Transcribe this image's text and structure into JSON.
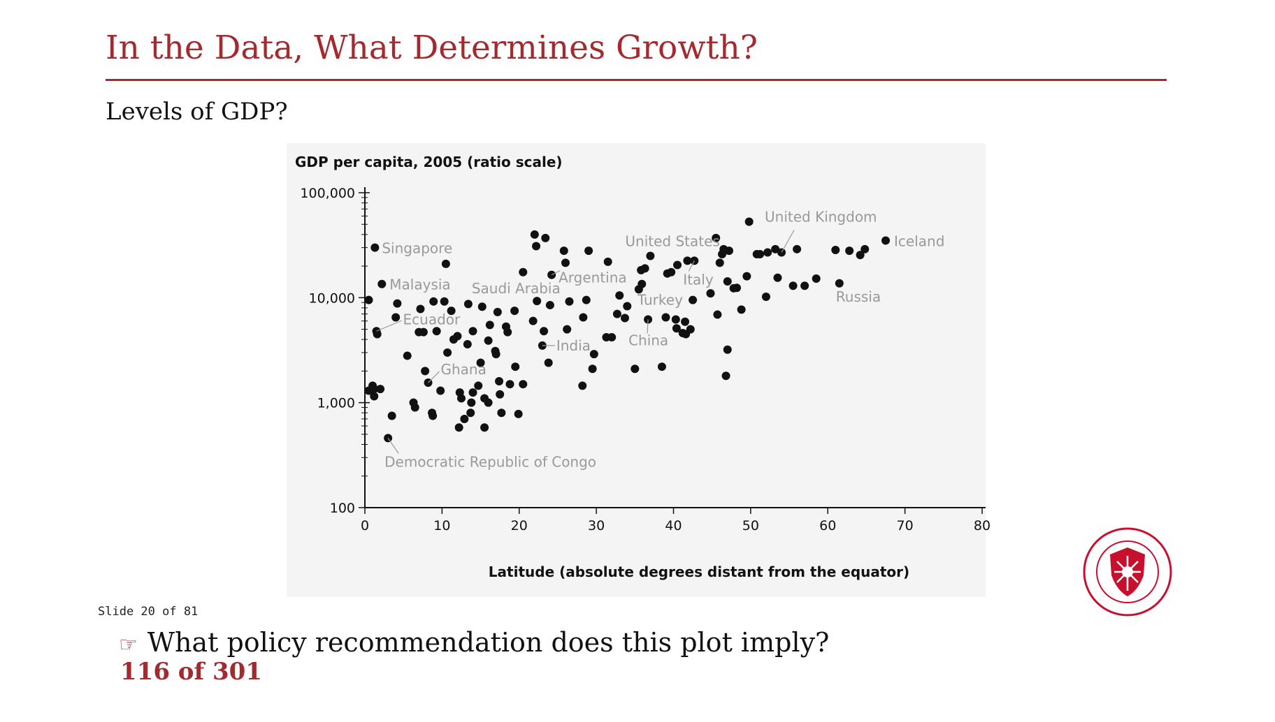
{
  "slide": {
    "title": "In the Data, What Determines Growth?",
    "subtitle": "Levels of GDP?",
    "counter": "Slide 20 of 81",
    "question_icon": "pointing-hand-icon",
    "question": "What policy recommendation does this plot imply?",
    "page_count": "116 of 301",
    "accent_color": "#a32a2f",
    "seal_label": "Carnegie Mellon University seal"
  },
  "chart_data": {
    "type": "scatter",
    "title": "GDP per capita, 2005 (ratio scale)",
    "xlabel": "Latitude (absolute degrees distant from the equator)",
    "ylabel": "",
    "xlim": [
      0,
      80
    ],
    "ylim": [
      100,
      100000
    ],
    "y_scale": "log",
    "x_ticks": [
      0,
      10,
      20,
      30,
      40,
      50,
      60,
      70,
      80
    ],
    "x_tick_labels": [
      "0",
      "10",
      "20",
      "30",
      "40",
      "50",
      "60",
      "70",
      "80"
    ],
    "y_ticks": [
      100,
      1000,
      10000,
      100000
    ],
    "y_tick_labels": [
      "100",
      "1,000",
      "10,000",
      "100,000"
    ],
    "grid": false,
    "marker_color": "#111111",
    "label_color": "#999999",
    "points": [
      [
        0.5,
        9500
      ],
      [
        0.5,
        1300
      ],
      [
        1.0,
        1450
      ],
      [
        1.2,
        1350
      ],
      [
        1.2,
        1150
      ],
      [
        1.3,
        30000
      ],
      [
        1.5,
        4800
      ],
      [
        1.6,
        4500
      ],
      [
        2.0,
        1350
      ],
      [
        2.2,
        13500
      ],
      [
        3.0,
        460
      ],
      [
        3.5,
        750
      ],
      [
        4.0,
        6500
      ],
      [
        4.2,
        8800
      ],
      [
        5.5,
        2800
      ],
      [
        6.3,
        1000
      ],
      [
        6.5,
        900
      ],
      [
        7.0,
        4700
      ],
      [
        7.2,
        7800
      ],
      [
        7.6,
        4700
      ],
      [
        7.8,
        2000
      ],
      [
        8.2,
        1550
      ],
      [
        8.7,
        800
      ],
      [
        8.8,
        750
      ],
      [
        8.9,
        9200
      ],
      [
        9.3,
        4800
      ],
      [
        9.8,
        1300
      ],
      [
        10.3,
        9200
      ],
      [
        10.5,
        21000
      ],
      [
        10.7,
        3000
      ],
      [
        11.2,
        7500
      ],
      [
        11.5,
        4000
      ],
      [
        12.0,
        4300
      ],
      [
        12.2,
        580
      ],
      [
        12.3,
        1250
      ],
      [
        12.5,
        1100
      ],
      [
        12.9,
        700
      ],
      [
        13.3,
        3600
      ],
      [
        13.4,
        8700
      ],
      [
        13.7,
        800
      ],
      [
        13.8,
        1000
      ],
      [
        14.0,
        4800
      ],
      [
        14.0,
        1250
      ],
      [
        14.7,
        1450
      ],
      [
        15.0,
        2400
      ],
      [
        15.2,
        8200
      ],
      [
        15.5,
        580
      ],
      [
        15.5,
        1100
      ],
      [
        16.0,
        1000
      ],
      [
        16.0,
        3900
      ],
      [
        16.2,
        5500
      ],
      [
        16.9,
        3100
      ],
      [
        17.0,
        2900
      ],
      [
        17.2,
        7300
      ],
      [
        17.4,
        1600
      ],
      [
        17.5,
        1200
      ],
      [
        17.7,
        800
      ],
      [
        18.3,
        5300
      ],
      [
        18.5,
        4700
      ],
      [
        18.8,
        1500
      ],
      [
        19.4,
        7500
      ],
      [
        19.5,
        2200
      ],
      [
        19.9,
        780
      ],
      [
        20.5,
        1500
      ],
      [
        20.5,
        17500
      ],
      [
        21.8,
        6000
      ],
      [
        22.0,
        40000
      ],
      [
        22.2,
        31000
      ],
      [
        22.3,
        9300
      ],
      [
        23.0,
        3500
      ],
      [
        23.2,
        4800
      ],
      [
        23.4,
        37000
      ],
      [
        23.8,
        2400
      ],
      [
        24.0,
        8500
      ],
      [
        24.2,
        16500
      ],
      [
        25.8,
        28000
      ],
      [
        26.0,
        21500
      ],
      [
        26.2,
        5000
      ],
      [
        26.5,
        9200
      ],
      [
        28.2,
        1450
      ],
      [
        28.3,
        6500
      ],
      [
        28.7,
        9500
      ],
      [
        29.0,
        28000
      ],
      [
        29.5,
        2100
      ],
      [
        29.7,
        2900
      ],
      [
        31.3,
        4200
      ],
      [
        31.5,
        22000
      ],
      [
        32.0,
        4200
      ],
      [
        32.7,
        7000
      ],
      [
        33.0,
        10500
      ],
      [
        33.7,
        6400
      ],
      [
        34.0,
        8300
      ],
      [
        35.0,
        2100
      ],
      [
        35.5,
        12000
      ],
      [
        35.8,
        18300
      ],
      [
        35.9,
        13500
      ],
      [
        36.3,
        19000
      ],
      [
        36.7,
        6200
      ],
      [
        37.0,
        25000
      ],
      [
        38.5,
        2200
      ],
      [
        39.0,
        6500
      ],
      [
        39.2,
        17000
      ],
      [
        39.7,
        17500
      ],
      [
        40.3,
        6200
      ],
      [
        40.4,
        5100
      ],
      [
        40.5,
        20500
      ],
      [
        41.2,
        4600
      ],
      [
        41.5,
        5900
      ],
      [
        41.6,
        4500
      ],
      [
        41.8,
        22500
      ],
      [
        42.2,
        5000
      ],
      [
        42.5,
        9500
      ],
      [
        42.7,
        22500
      ],
      [
        44.8,
        11000
      ],
      [
        45.5,
        37000
      ],
      [
        45.7,
        6900
      ],
      [
        46.0,
        21500
      ],
      [
        46.3,
        26000
      ],
      [
        46.5,
        29000
      ],
      [
        46.8,
        1800
      ],
      [
        47.0,
        3200
      ],
      [
        47.0,
        14300
      ],
      [
        47.2,
        28000
      ],
      [
        47.8,
        12300
      ],
      [
        48.2,
        12400
      ],
      [
        48.8,
        7700
      ],
      [
        49.5,
        16000
      ],
      [
        49.8,
        53000
      ],
      [
        50.8,
        26000
      ],
      [
        51.2,
        26000
      ],
      [
        52.0,
        10200
      ],
      [
        52.2,
        27000
      ],
      [
        53.2,
        29000
      ],
      [
        53.5,
        15500
      ],
      [
        54.0,
        27000
      ],
      [
        55.5,
        13000
      ],
      [
        56.0,
        29000
      ],
      [
        57.0,
        13000
      ],
      [
        58.5,
        15200
      ],
      [
        61.0,
        28500
      ],
      [
        61.5,
        13700
      ],
      [
        62.8,
        28000
      ],
      [
        64.2,
        25500
      ],
      [
        64.8,
        29000
      ],
      [
        67.5,
        35000
      ]
    ],
    "annotations": [
      {
        "text": "Singapore",
        "x": 1.3,
        "y": 30000
      },
      {
        "text": "Malaysia",
        "x": 2.2,
        "y": 13500
      },
      {
        "text": "Ecuador",
        "x": 1.5,
        "y": 4800
      },
      {
        "text": "Ghana",
        "x": 8.2,
        "y": 1550
      },
      {
        "text": "Democratic Republic of Congo",
        "x": 3.0,
        "y": 460
      },
      {
        "text": "Saudi Arabia",
        "x": 22.0,
        "y": 40000
      },
      {
        "text": "Argentina",
        "x": 24.2,
        "y": 16500
      },
      {
        "text": "India",
        "x": 23.0,
        "y": 3500
      },
      {
        "text": "Turkey",
        "x": 35.5,
        "y": 12000
      },
      {
        "text": "China",
        "x": 36.7,
        "y": 6200
      },
      {
        "text": "Italy",
        "x": 42.7,
        "y": 22500
      },
      {
        "text": "United States",
        "x": 37.0,
        "y": 25000
      },
      {
        "text": "United Kingdom",
        "x": 54.0,
        "y": 27000
      },
      {
        "text": "Russia",
        "x": 61.5,
        "y": 13700
      },
      {
        "text": "Iceland",
        "x": 67.5,
        "y": 35000
      }
    ]
  }
}
